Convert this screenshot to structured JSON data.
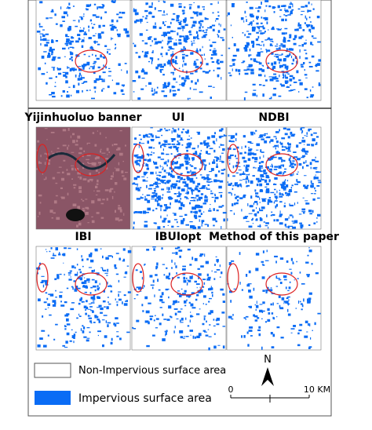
{
  "panel_titles": [
    "Yijinhuoluo banner",
    "UI",
    "NDBI",
    "IBI",
    "IBUIopt",
    "Method of this paper"
  ],
  "legend": {
    "items": [
      "Non-Impervious surface area",
      "Impervious surface area"
    ]
  },
  "north_arrow": {
    "label": "N"
  },
  "scale_bar": {
    "start": "0",
    "end": "10 KM"
  }
}
